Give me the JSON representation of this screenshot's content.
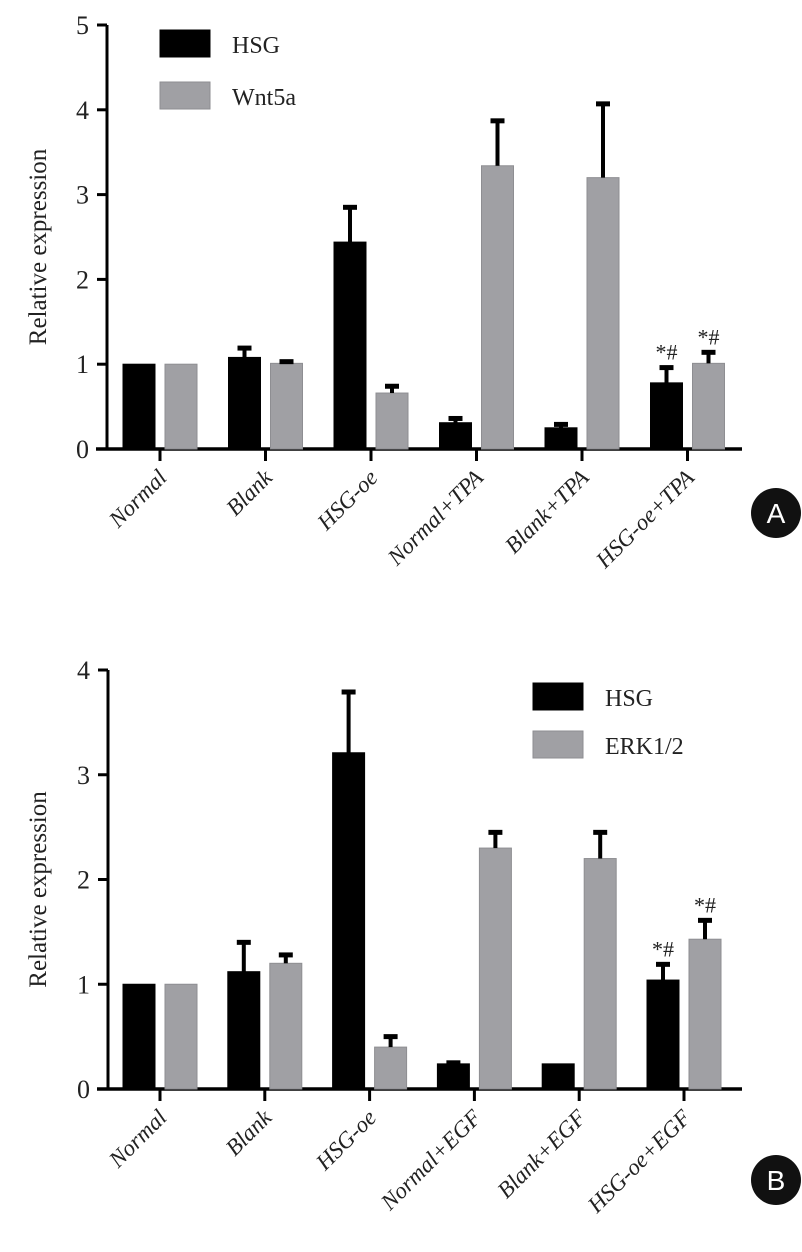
{
  "chart_data": [
    {
      "type": "bar",
      "panel": "A",
      "ylabel": "Relative expression",
      "xlabel": "",
      "ylim": [
        0,
        5
      ],
      "yticks": [
        "0",
        "1",
        "2",
        "3",
        "4",
        "5"
      ],
      "categories": [
        "Normal",
        "Blank",
        "HSG-oe",
        "Normal+TPA",
        "Blank+TPA",
        "HSG-oe+TPA"
      ],
      "legend_position": "top-left",
      "series": [
        {
          "name": "HSG",
          "color": "#000000",
          "values": [
            1.0,
            1.08,
            2.44,
            0.31,
            0.25,
            0.78
          ],
          "errors": [
            0,
            0.11,
            0.41,
            0.05,
            0.04,
            0.18
          ],
          "annotations": [
            "",
            "",
            "",
            "",
            "",
            "*#"
          ]
        },
        {
          "name": "Wnt5a",
          "color": "#a0a0a4",
          "values": [
            1.0,
            1.01,
            0.66,
            3.34,
            3.2,
            1.01
          ],
          "errors": [
            0,
            0.02,
            0.08,
            0.53,
            0.87,
            0.13
          ],
          "annotations": [
            "",
            "",
            "",
            "",
            "",
            "*#"
          ]
        }
      ],
      "badge": "A"
    },
    {
      "type": "bar",
      "panel": "B",
      "ylabel": "Relative expression",
      "xlabel": "",
      "ylim": [
        0,
        4
      ],
      "yticks": [
        "0",
        "1",
        "2",
        "3",
        "4"
      ],
      "categories": [
        "Normal",
        "Blank",
        "HSG-oe",
        "Normal+EGF",
        "Blank+EGF",
        "HSG-oe+EGF"
      ],
      "legend_position": "top-right",
      "series": [
        {
          "name": "HSG",
          "color": "#000000",
          "values": [
            1.0,
            1.12,
            3.21,
            0.24,
            0.24,
            1.04
          ],
          "errors": [
            0,
            0.28,
            0.58,
            0.01,
            0,
            0.15
          ],
          "annotations": [
            "",
            "",
            "",
            "",
            "",
            "*#"
          ]
        },
        {
          "name": "ERK1/2",
          "color": "#a0a0a4",
          "values": [
            1.0,
            1.2,
            0.4,
            2.3,
            2.2,
            1.43
          ],
          "errors": [
            0,
            0.08,
            0.1,
            0.15,
            0.25,
            0.18
          ],
          "annotations": [
            "",
            "",
            "",
            "",
            "",
            "*#"
          ]
        }
      ],
      "badge": "B"
    }
  ]
}
